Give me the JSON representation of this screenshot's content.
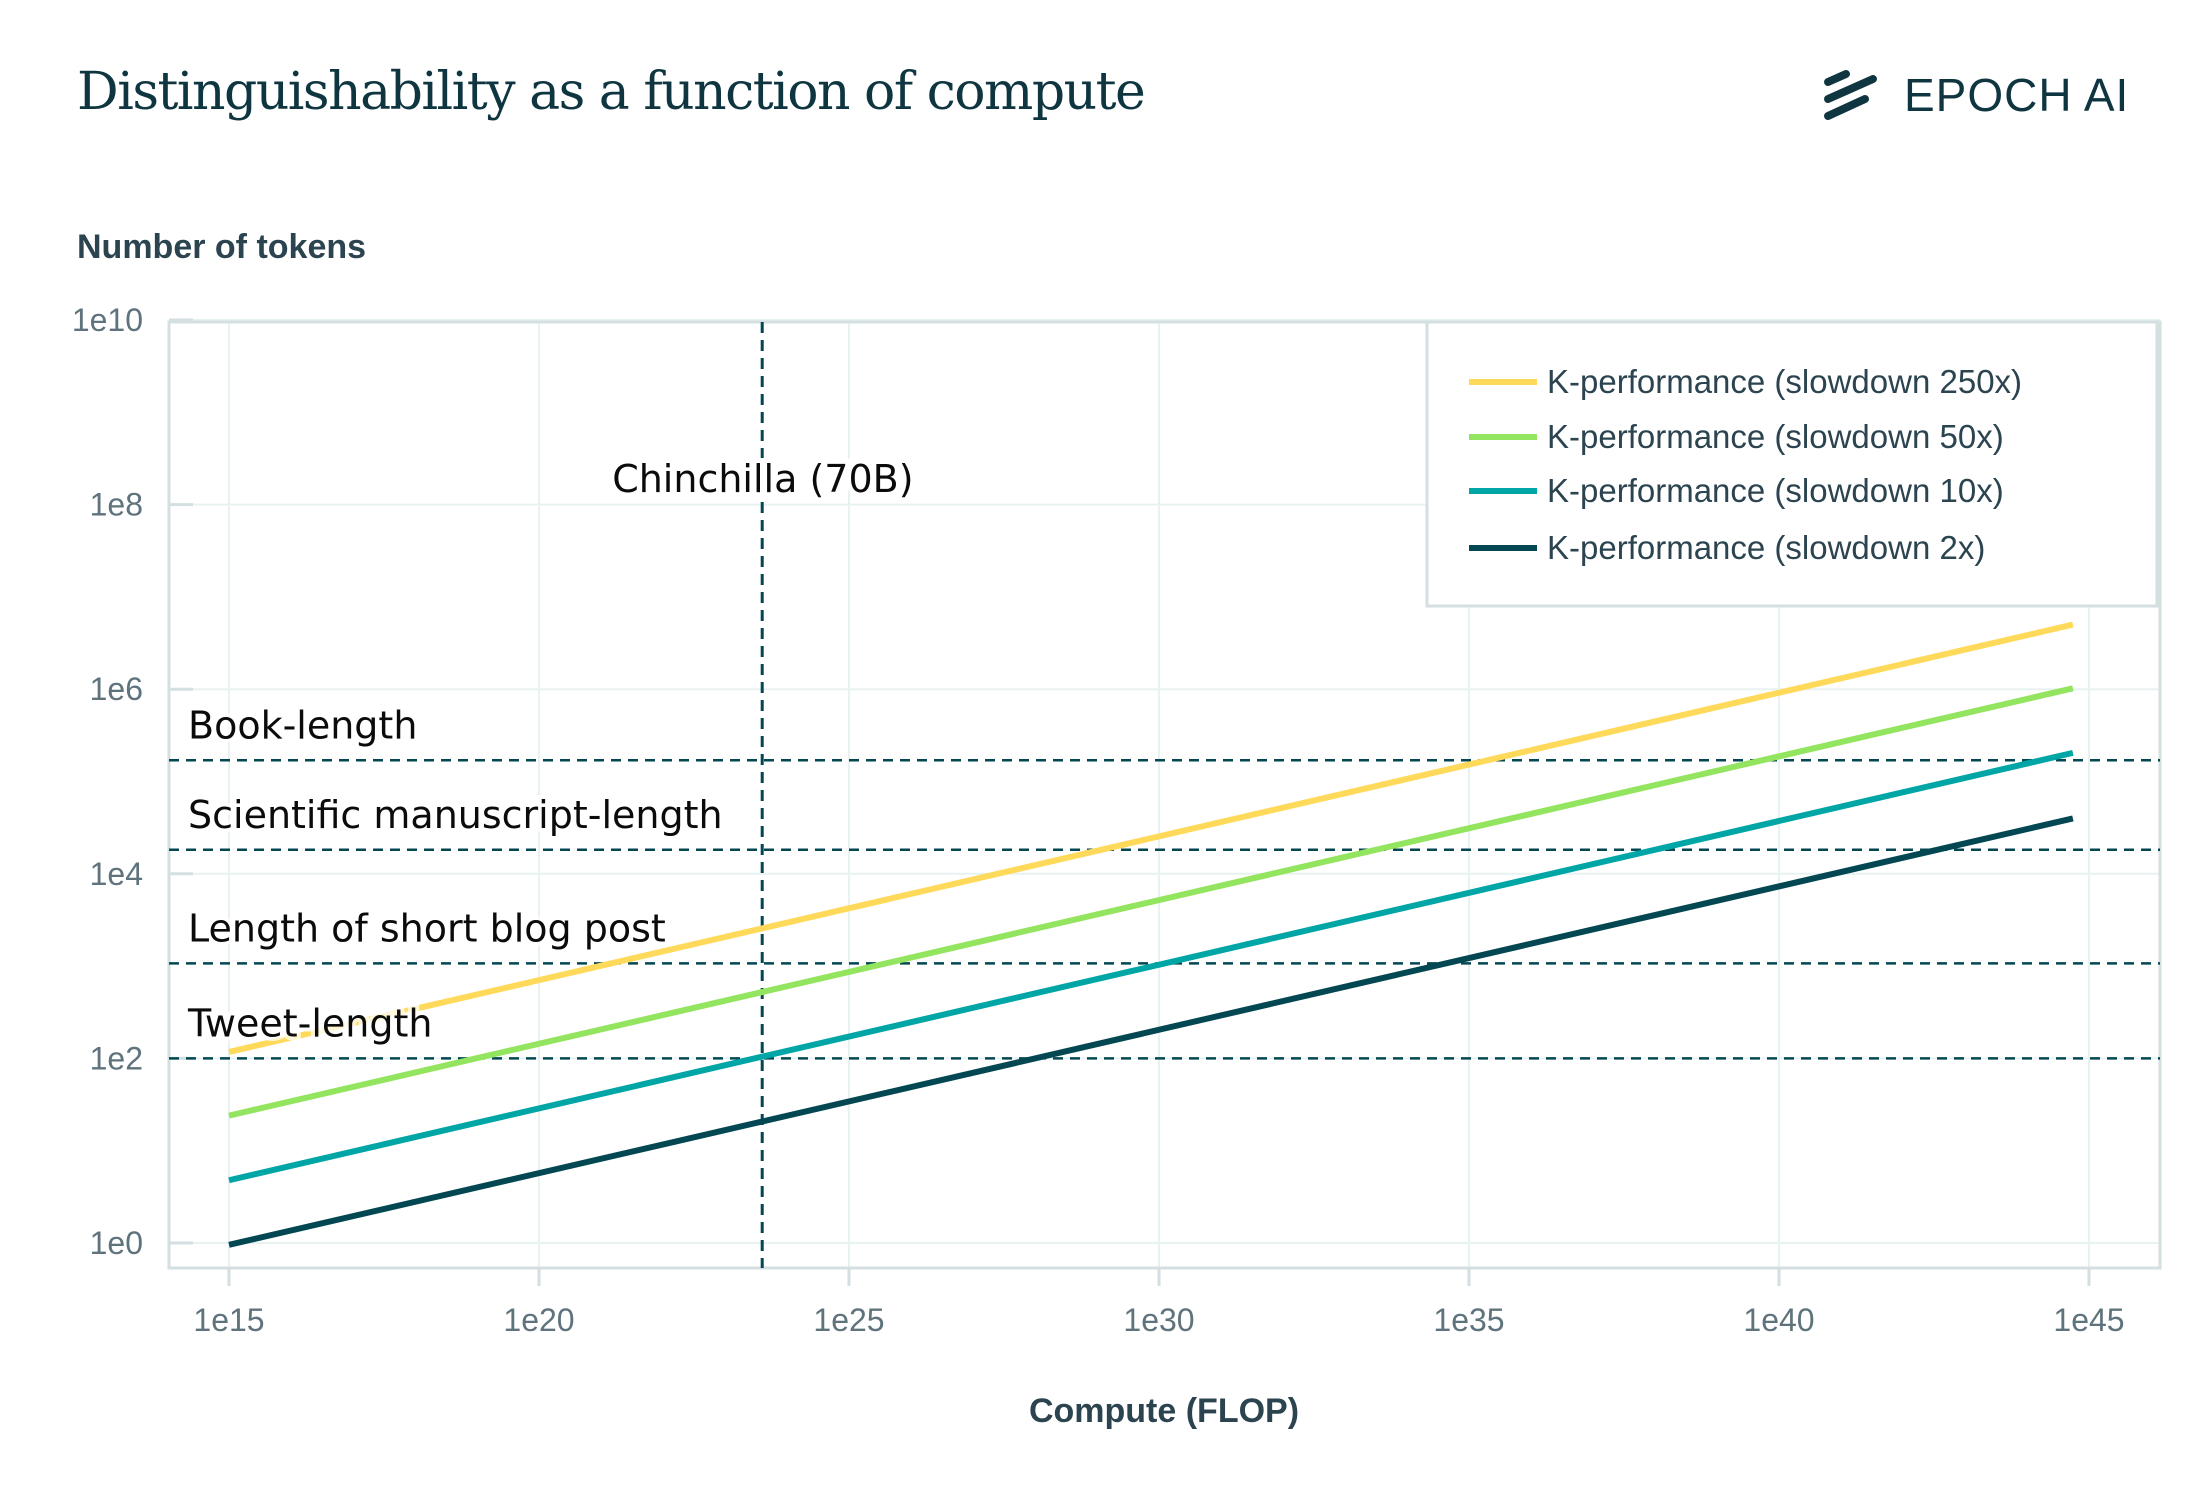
{
  "header": {
    "title": "Distinguishability as a function of compute",
    "logo_text": "EPOCH AI",
    "logo_icon": "epoch-stripes-icon",
    "brand_color": "#0f3640"
  },
  "chart_data": {
    "type": "line",
    "title": "Distinguishability as a function of compute",
    "xlabel": "Compute (FLOP)",
    "ylabel": "Number of tokens",
    "xscale": "log",
    "yscale": "log",
    "xlim_log10": [
      14.3,
      46.2
    ],
    "ylim_log10": [
      -0.35,
      10
    ],
    "x_ticks": [
      {
        "log10": 15,
        "label": "1e15"
      },
      {
        "log10": 20,
        "label": "1e20"
      },
      {
        "log10": 25,
        "label": "1e25"
      },
      {
        "log10": 30,
        "label": "1e30"
      },
      {
        "log10": 35,
        "label": "1e35"
      },
      {
        "log10": 40,
        "label": "1e40"
      },
      {
        "log10": 45,
        "label": "1e45"
      }
    ],
    "y_ticks": [
      {
        "log10": 0,
        "label": "1e0"
      },
      {
        "log10": 2,
        "label": "1e2"
      },
      {
        "log10": 4,
        "label": "1e4"
      },
      {
        "log10": 6,
        "label": "1e6"
      },
      {
        "log10": 8,
        "label": "1e8"
      },
      {
        "log10": 10,
        "label": "1e10"
      }
    ],
    "grid": true,
    "legend_position": "top-right",
    "series": [
      {
        "name": "K-performance (slowdown 250x)",
        "color": "#ffd95a",
        "x_log10": [
          15,
          44.74
        ],
        "y_log10": [
          2.07,
          6.7
        ]
      },
      {
        "name": "K-performance (slowdown 50x)",
        "color": "#93e45e",
        "x_log10": [
          15,
          44.74
        ],
        "y_log10": [
          1.38,
          6.01
        ]
      },
      {
        "name": "K-performance (slowdown 10x)",
        "color": "#00a5a6",
        "x_log10": [
          15,
          44.74
        ],
        "y_log10": [
          0.68,
          5.31
        ]
      },
      {
        "name": "K-performance (slowdown 2x)",
        "color": "#034752",
        "x_log10": [
          15,
          44.74
        ],
        "y_log10": [
          -0.02,
          4.6
        ]
      }
    ],
    "reference_lines": {
      "color": "#034752",
      "horizontal": [
        {
          "label": "Book-length",
          "y_log10": 5.23
        },
        {
          "label": "Scientific manuscript-length",
          "y_log10": 4.26
        },
        {
          "label": "Length of short blog post",
          "y_log10": 3.03
        },
        {
          "label": "Tweet-length",
          "y_log10": 2.0
        }
      ],
      "vertical": [
        {
          "label": "Chinchilla (70B)",
          "x_log10": 23.6
        }
      ]
    }
  }
}
